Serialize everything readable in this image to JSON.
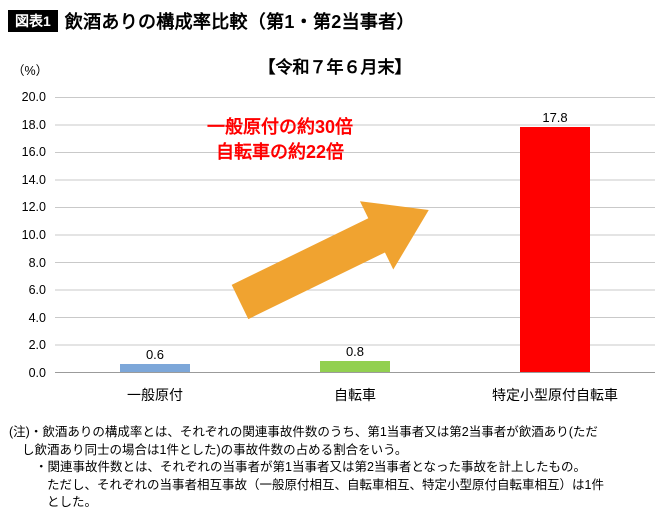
{
  "header": {
    "badge": "図表1",
    "title": "飲酒ありの構成率比較（第1・第2当事者）"
  },
  "chart_data": {
    "type": "bar",
    "title": "【令和７年６月末】",
    "unit_label": "（%）",
    "categories": [
      "一般原付",
      "自転車",
      "特定小型原付自転車"
    ],
    "values": [
      0.6,
      0.8,
      17.8
    ],
    "value_labels": [
      "0.6",
      "0.8",
      "17.8"
    ],
    "colors": [
      "#7da7d9",
      "#92d050",
      "#ff0000"
    ],
    "ylim": [
      0,
      20
    ],
    "ytick_step": 2,
    "yticks": [
      "20.0",
      "18.0",
      "16.0",
      "14.0",
      "12.0",
      "10.0",
      "8.0",
      "6.0",
      "4.0",
      "2.0",
      "0.0"
    ],
    "grid": true,
    "legend": "none",
    "annotation": {
      "lines": [
        "一般原付の約30倍",
        "自転車の約22倍"
      ],
      "color": "#ff0000"
    },
    "arrow_color": "#f0a330"
  },
  "footnotes": [
    "(注)・飲酒ありの構成率とは、それぞれの関連事故件数のうち、第1当事者又は第2当事者が飲酒あり(ただ",
    "し飲酒あり同士の場合は1件とした)の事故件数の占める割合をいう。",
    "・関連事故件数とは、それぞれの当事者が第1当事者又は第2当事者となった事故を計上したもの。",
    "ただし、それぞれの当事者相互事故（一般原付相互、自転車相互、特定小型原付自転車相互）は1件",
    "とした。"
  ]
}
